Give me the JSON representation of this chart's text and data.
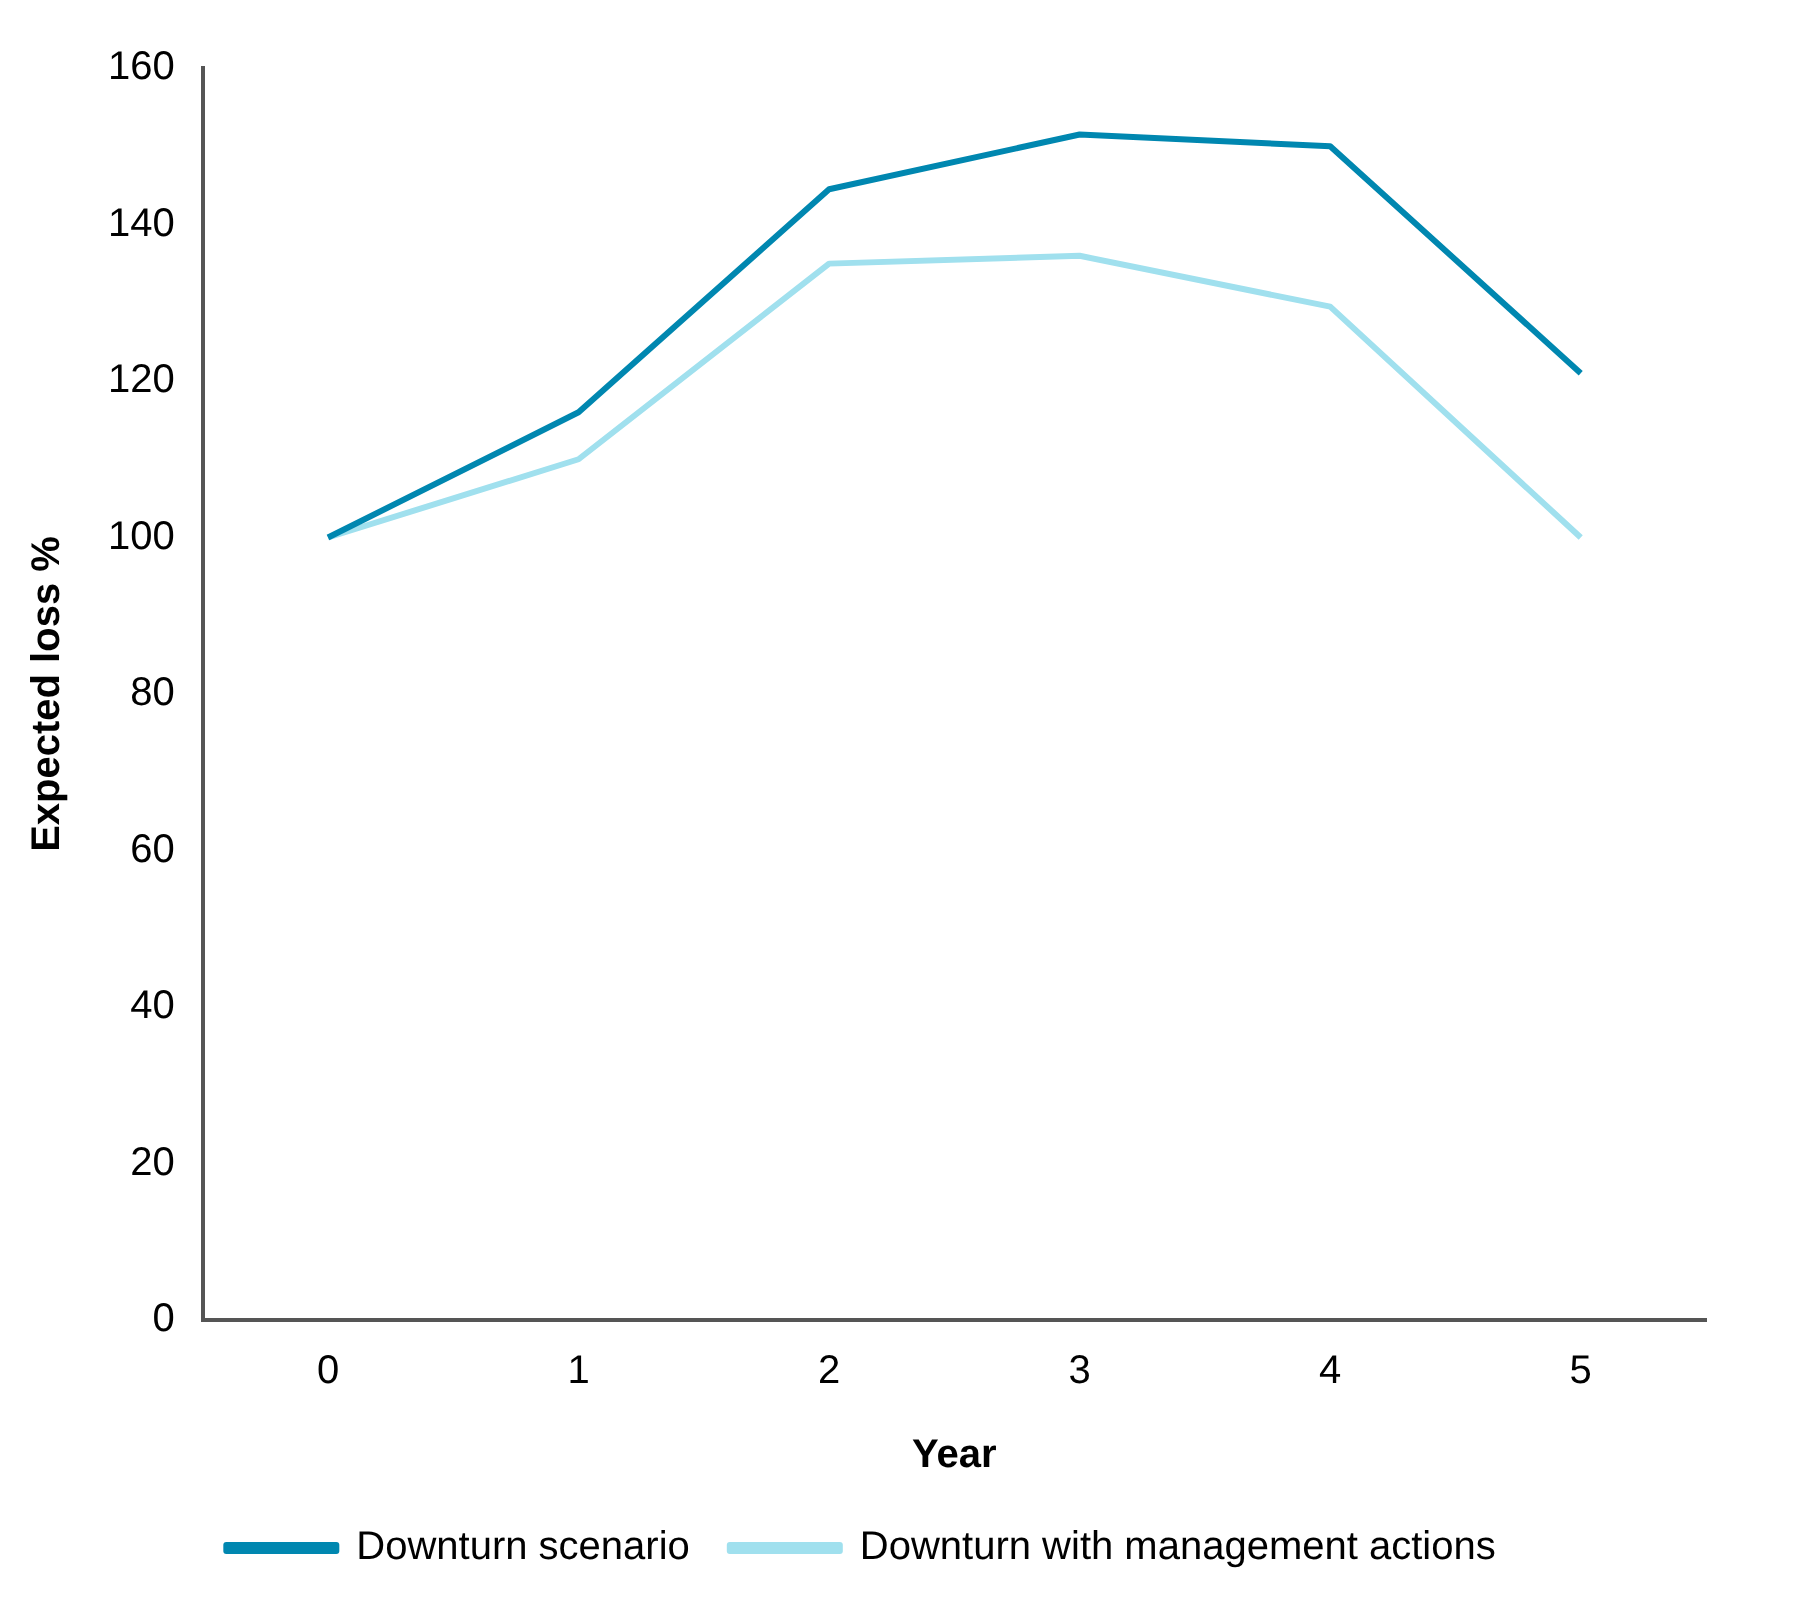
{
  "chart_data": {
    "type": "line",
    "xlabel": "Year",
    "ylabel": "Expected loss %",
    "categories": [
      "0",
      "1",
      "2",
      "3",
      "4",
      "5"
    ],
    "series": [
      {
        "name": "Downturn scenario",
        "color": "#0087b0",
        "values": [
          100,
          116,
          144.5,
          151.5,
          150,
          121
        ]
      },
      {
        "name": "Downturn with management actions",
        "color": "#a0e0ee",
        "values": [
          100,
          110,
          135,
          136,
          129.5,
          100
        ]
      }
    ],
    "ylim": [
      0,
      160
    ],
    "yticks": [
      0,
      20,
      40,
      60,
      80,
      100,
      120,
      140,
      160
    ],
    "grid": false,
    "legend": "bottom",
    "marker": "none",
    "line_style": "solid"
  }
}
